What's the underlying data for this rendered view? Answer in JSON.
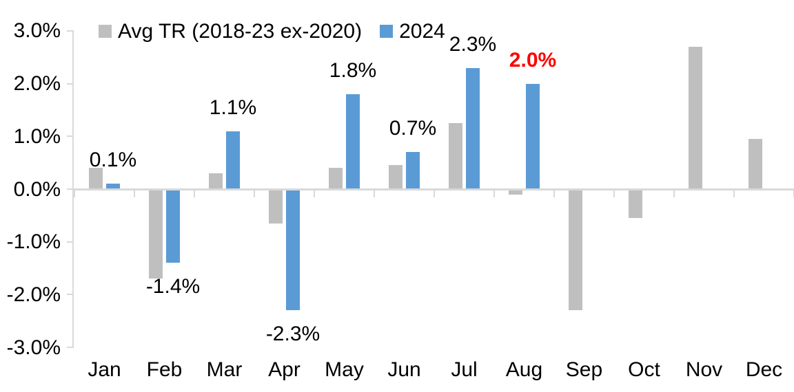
{
  "legend": {
    "items": [
      {
        "label": "Avg TR (2018-23 ex-2020)",
        "color": "#BFBFBF"
      },
      {
        "label": "2024",
        "color": "#5B9BD5"
      }
    ]
  },
  "colors": {
    "axis": "#D9D9D9",
    "text": "#000000",
    "highlight": "#FF0000",
    "background": "#FFFFFF",
    "gray_series": "#BFBFBF",
    "blue_series": "#5B9BD5"
  },
  "chart_data": {
    "type": "bar",
    "title": "",
    "categories": [
      "Jan",
      "Feb",
      "Mar",
      "Apr",
      "May",
      "Jun",
      "Jul",
      "Aug",
      "Sep",
      "Oct",
      "Nov",
      "Dec"
    ],
    "series": [
      {
        "name": "Avg TR (2018-23 ex-2020)",
        "color": "#BFBFBF",
        "values": [
          0.4,
          -1.7,
          0.3,
          -0.65,
          0.4,
          0.45,
          1.25,
          -0.1,
          -2.3,
          -0.55,
          2.7,
          0.95
        ]
      },
      {
        "name": "2024",
        "color": "#5B9BD5",
        "values": [
          0.1,
          -1.4,
          1.1,
          -2.3,
          1.8,
          0.7,
          2.3,
          2.0,
          null,
          null,
          null,
          null
        ],
        "data_labels": [
          {
            "text": "0.1%",
            "color": "#000000",
            "bold": false
          },
          {
            "text": "-1.4%",
            "color": "#000000",
            "bold": false
          },
          {
            "text": "1.1%",
            "color": "#000000",
            "bold": false
          },
          {
            "text": "-2.3%",
            "color": "#000000",
            "bold": false
          },
          {
            "text": "1.8%",
            "color": "#000000",
            "bold": false
          },
          {
            "text": "0.7%",
            "color": "#000000",
            "bold": false
          },
          {
            "text": "2.3%",
            "color": "#000000",
            "bold": false
          },
          {
            "text": "2.0%",
            "color": "#FF0000",
            "bold": true
          },
          null,
          null,
          null,
          null
        ]
      }
    ],
    "xlabel": "",
    "ylabel": "",
    "ylim": [
      -3,
      3
    ],
    "yticks": [
      3,
      2,
      1,
      0,
      -1,
      -2,
      -3
    ],
    "ytick_labels": [
      "3.0%",
      "2.0%",
      "1.0%",
      "0.0%",
      "-1.0%",
      "-2.0%",
      "-3.0%"
    ],
    "grid": false,
    "legend_position": "top-left"
  }
}
